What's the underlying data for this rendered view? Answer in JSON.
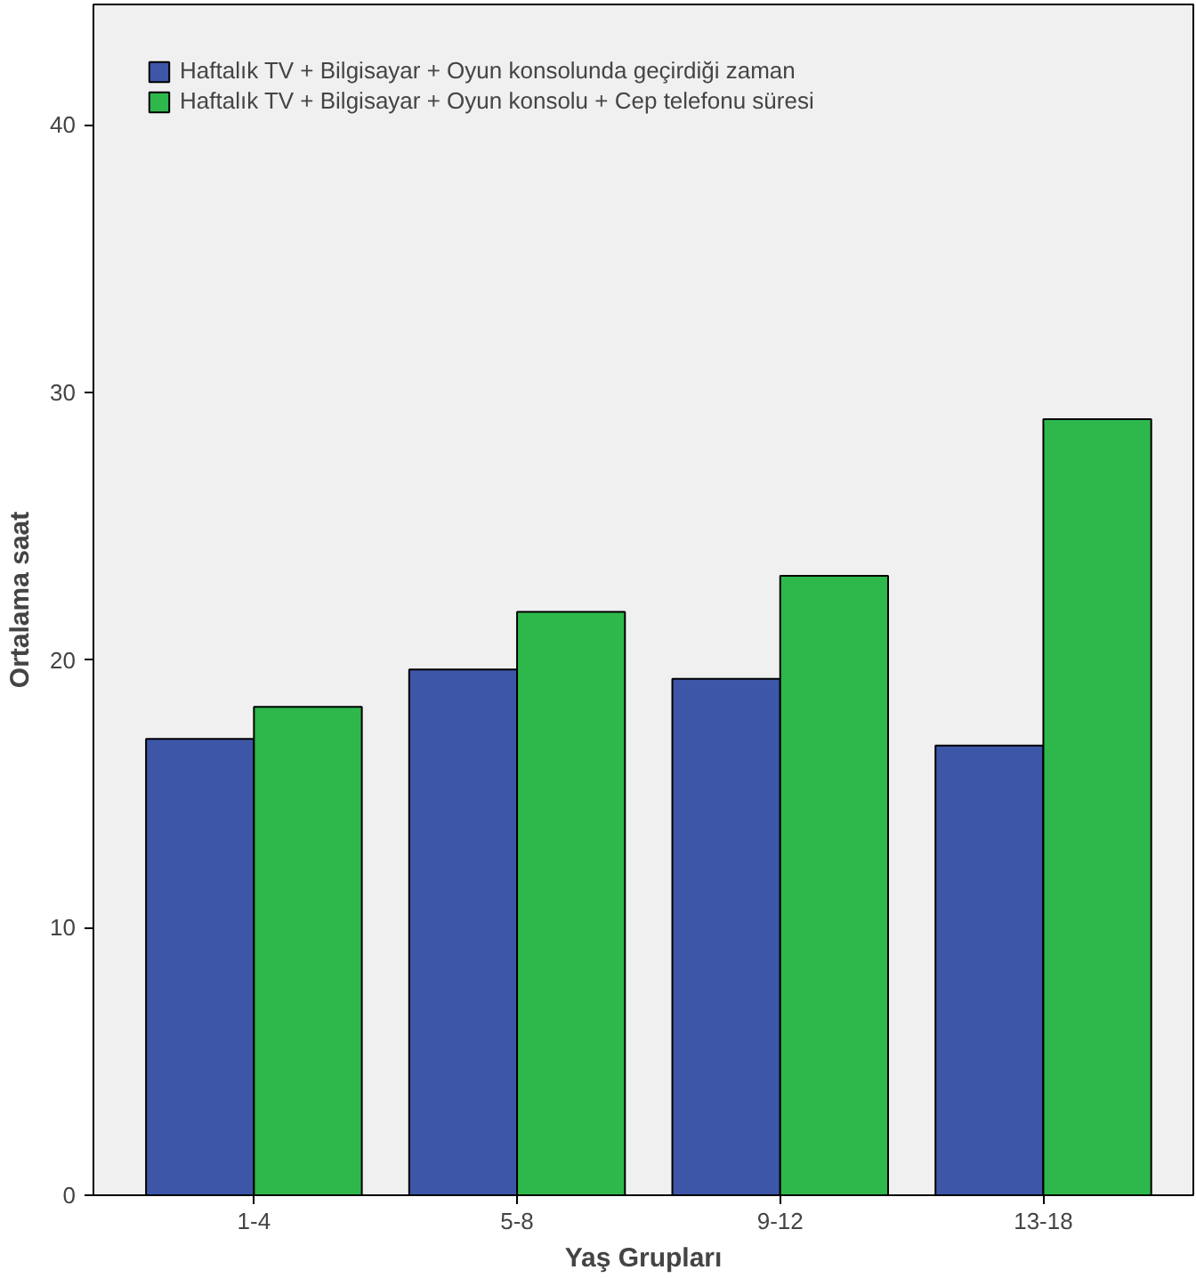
{
  "chart_data": {
    "type": "bar",
    "xlabel": "Yaş Grupları",
    "ylabel": "Ortalama saat",
    "categories": [
      "1-4",
      "5-8",
      "9-12",
      "13-18"
    ],
    "series": [
      {
        "name": "Haftalık TV + Bilgisayar + Oyun konsolunda geçirdiği zaman",
        "color": "#3d56a8",
        "values": [
          17.05,
          19.65,
          19.3,
          16.8
        ]
      },
      {
        "name": "Haftalık TV + Bilgisayar + Oyun konsolu + Cep telefonu süresi",
        "color": "#2eb84b",
        "values": [
          18.25,
          21.8,
          23.15,
          29.0
        ]
      }
    ],
    "ylim": [
      0,
      44.5
    ],
    "yticks": [
      0,
      10,
      20,
      30,
      40
    ],
    "grid": false,
    "legend": "top left"
  }
}
